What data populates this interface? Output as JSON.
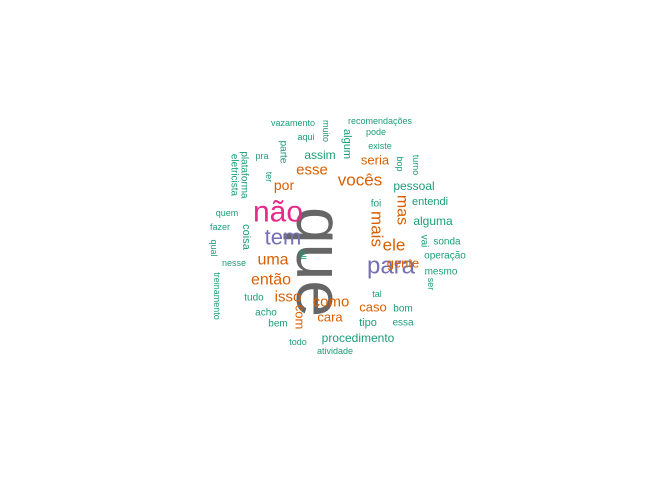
{
  "chart_data": {
    "type": "wordcloud",
    "colors": {
      "gray": "#666666",
      "magenta": "#e7298a",
      "purple": "#7570b3",
      "orange": "#d95f02",
      "teal": "#1b9e77"
    },
    "words": [
      {
        "text": "que",
        "color": "gray",
        "rotated": true
      },
      {
        "text": "não",
        "color": "magenta",
        "rotated": false
      },
      {
        "text": "para",
        "color": "purple",
        "rotated": false
      },
      {
        "text": "tem",
        "color": "purple",
        "rotated": false
      },
      {
        "text": "vocês",
        "color": "orange",
        "rotated": false
      },
      {
        "text": "esse",
        "color": "orange",
        "rotated": false
      },
      {
        "text": "por",
        "color": "orange",
        "rotated": false
      },
      {
        "text": "uma",
        "color": "orange",
        "rotated": false
      },
      {
        "text": "então",
        "color": "orange",
        "rotated": false
      },
      {
        "text": "isso",
        "color": "orange",
        "rotated": false
      },
      {
        "text": "como",
        "color": "orange",
        "rotated": false
      },
      {
        "text": "ele",
        "color": "orange",
        "rotated": false
      },
      {
        "text": "mais",
        "color": "orange",
        "rotated": true
      },
      {
        "text": "mas",
        "color": "orange",
        "rotated": true
      },
      {
        "text": "seria",
        "color": "orange",
        "rotated": false
      },
      {
        "text": "gente",
        "color": "orange",
        "rotated": false
      },
      {
        "text": "caso",
        "color": "orange",
        "rotated": false
      },
      {
        "text": "cara",
        "color": "orange",
        "rotated": false
      },
      {
        "text": "com",
        "color": "orange",
        "rotated": true
      },
      {
        "text": "assim",
        "color": "teal",
        "rotated": false
      },
      {
        "text": "algum",
        "color": "teal",
        "rotated": true
      },
      {
        "text": "pessoal",
        "color": "teal",
        "rotated": false
      },
      {
        "text": "alguma",
        "color": "teal",
        "rotated": false
      },
      {
        "text": "entendi",
        "color": "teal",
        "rotated": false
      },
      {
        "text": "foi",
        "color": "teal",
        "rotated": false
      },
      {
        "text": "sonda",
        "color": "teal",
        "rotated": false
      },
      {
        "text": "operação",
        "color": "teal",
        "rotated": false
      },
      {
        "text": "mesmo",
        "color": "teal",
        "rotated": false
      },
      {
        "text": "procedimento",
        "color": "teal",
        "rotated": false
      },
      {
        "text": "tipo",
        "color": "teal",
        "rotated": false
      },
      {
        "text": "essa",
        "color": "teal",
        "rotated": false
      },
      {
        "text": "bom",
        "color": "teal",
        "rotated": false
      },
      {
        "text": "tal",
        "color": "teal",
        "rotated": false
      },
      {
        "text": "coisa",
        "color": "teal",
        "rotated": true
      },
      {
        "text": "tudo",
        "color": "teal",
        "rotated": false
      },
      {
        "text": "acho",
        "color": "teal",
        "rotated": false
      },
      {
        "text": "bem",
        "color": "teal",
        "rotated": false
      },
      {
        "text": "todo",
        "color": "teal",
        "rotated": false
      },
      {
        "text": "atividade",
        "color": "teal",
        "rotated": false
      },
      {
        "text": "vazamento",
        "color": "teal",
        "rotated": false
      },
      {
        "text": "recomendações",
        "color": "teal",
        "rotated": false
      },
      {
        "text": "pode",
        "color": "teal",
        "rotated": false
      },
      {
        "text": "existe",
        "color": "teal",
        "rotated": false
      },
      {
        "text": "aqui",
        "color": "teal",
        "rotated": false
      },
      {
        "text": "muito",
        "color": "teal",
        "rotated": true
      },
      {
        "text": "pra",
        "color": "teal",
        "rotated": false
      },
      {
        "text": "parte",
        "color": "teal",
        "rotated": true
      },
      {
        "text": "ter",
        "color": "teal",
        "rotated": true
      },
      {
        "text": "eletricista",
        "color": "teal",
        "rotated": true
      },
      {
        "text": "plataforma",
        "color": "teal",
        "rotated": true
      },
      {
        "text": "quem",
        "color": "teal",
        "rotated": false
      },
      {
        "text": "fazer",
        "color": "teal",
        "rotated": false
      },
      {
        "text": "qual",
        "color": "teal",
        "rotated": true
      },
      {
        "text": "nesse",
        "color": "teal",
        "rotated": false
      },
      {
        "text": "treinamento",
        "color": "teal",
        "rotated": true
      },
      {
        "text": "all",
        "color": "teal",
        "rotated": true
      },
      {
        "text": "bop",
        "color": "teal",
        "rotated": true
      },
      {
        "text": "turno",
        "color": "teal",
        "rotated": true
      },
      {
        "text": "vai",
        "color": "teal",
        "rotated": true
      },
      {
        "text": "ser",
        "color": "teal",
        "rotated": true
      }
    ]
  }
}
